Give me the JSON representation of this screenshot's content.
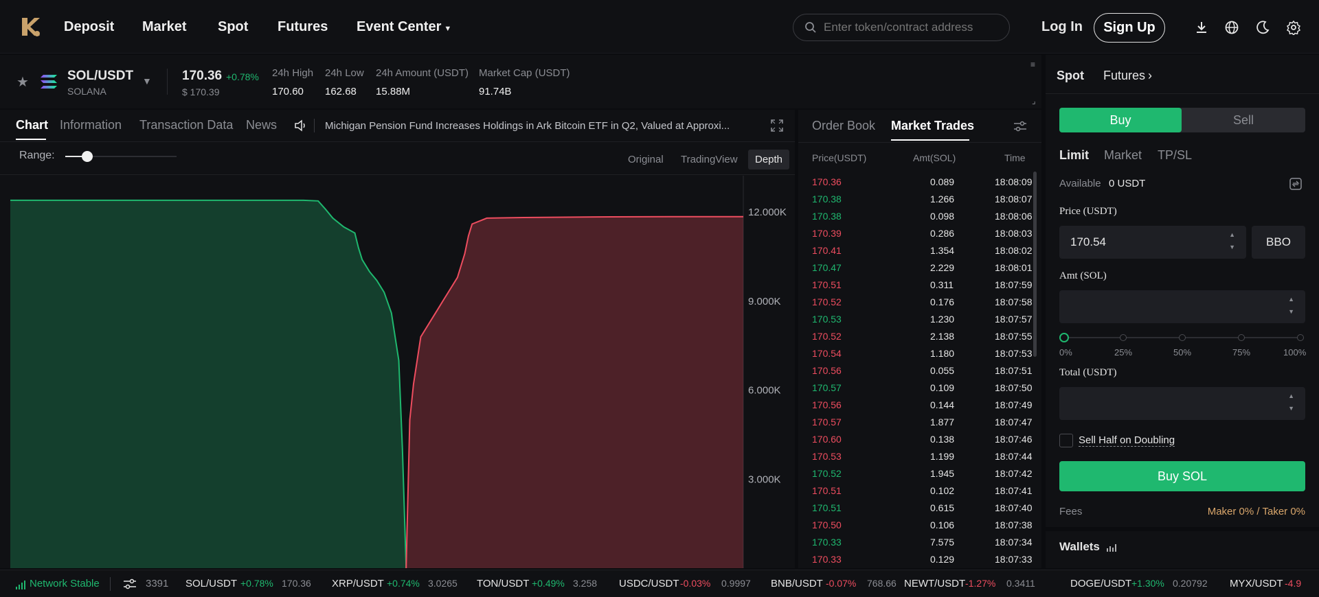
{
  "nav": {
    "links": [
      "Deposit",
      "Market",
      "Spot",
      "Futures",
      "Event Center"
    ],
    "search_placeholder": "Enter token/contract address",
    "login": "Log In",
    "signup": "Sign Up"
  },
  "pair": {
    "symbol": "SOL/USDT",
    "name": "SOLANA",
    "price": "170.36",
    "change": "+0.78%",
    "usd_price": "$ 170.39",
    "stats": [
      {
        "label": "24h High",
        "value": "170.60"
      },
      {
        "label": "24h Low",
        "value": "162.68"
      },
      {
        "label": "24h Amount (USDT)",
        "value": "15.88M"
      },
      {
        "label": "Market Cap (USDT)",
        "value": "91.74B"
      }
    ]
  },
  "chart_tabs": [
    "Chart",
    "Information",
    "Transaction Data",
    "News"
  ],
  "news_ticker": "Michigan Pension Fund Increases Holdings in Ark Bitcoin ETF in Q2, Valued at Approxi...",
  "range_label": "Range:",
  "range_level": 0.2,
  "view_modes": [
    "Original",
    "TradingView",
    "Depth"
  ],
  "chart_data": {
    "type": "area",
    "y_tick_labels": [
      "12.000K",
      "9.000K",
      "6.000K",
      "3.000K"
    ],
    "ylim": [
      0,
      13000
    ],
    "series": [
      {
        "color": "#1fb86f",
        "values": [
          [
            0,
            12400
          ],
          [
            0.02,
            12400
          ],
          [
            0.1,
            12400
          ],
          [
            0.2,
            12400
          ],
          [
            0.3,
            12400
          ],
          [
            0.4,
            12400
          ],
          [
            0.42,
            12380
          ],
          [
            0.43,
            12100
          ],
          [
            0.44,
            11800
          ],
          [
            0.455,
            11500
          ],
          [
            0.47,
            11300
          ],
          [
            0.475,
            10800
          ],
          [
            0.48,
            10400
          ],
          [
            0.49,
            10000
          ],
          [
            0.5,
            9700
          ],
          [
            0.51,
            9300
          ],
          [
            0.52,
            8600
          ],
          [
            0.53,
            7000
          ],
          [
            0.535,
            4000
          ],
          [
            0.54,
            0
          ]
        ]
      },
      {
        "color": "#ee4d5f",
        "values": [
          [
            0.54,
            0
          ],
          [
            0.545,
            5000
          ],
          [
            0.55,
            6200
          ],
          [
            0.56,
            7800
          ],
          [
            0.57,
            8200
          ],
          [
            0.58,
            8600
          ],
          [
            0.59,
            9000
          ],
          [
            0.6,
            9400
          ],
          [
            0.61,
            9800
          ],
          [
            0.62,
            10600
          ],
          [
            0.625,
            11200
          ],
          [
            0.63,
            11600
          ],
          [
            0.65,
            11800
          ],
          [
            0.7,
            11820
          ],
          [
            0.8,
            11840
          ],
          [
            0.9,
            11850
          ],
          [
            1.0,
            11850
          ]
        ]
      }
    ]
  },
  "trades_tabs": [
    "Order Book",
    "Market Trades"
  ],
  "trades_headers": [
    "Price(USDT)",
    "Amt(SOL)",
    "Time"
  ],
  "trades": [
    {
      "price": "170.36",
      "amt": "0.089",
      "time": "18:08:09",
      "side": "down"
    },
    {
      "price": "170.38",
      "amt": "1.266",
      "time": "18:08:07",
      "side": "up"
    },
    {
      "price": "170.38",
      "amt": "0.098",
      "time": "18:08:06",
      "side": "up"
    },
    {
      "price": "170.39",
      "amt": "0.286",
      "time": "18:08:03",
      "side": "down"
    },
    {
      "price": "170.41",
      "amt": "1.354",
      "time": "18:08:02",
      "side": "down"
    },
    {
      "price": "170.47",
      "amt": "2.229",
      "time": "18:08:01",
      "side": "up"
    },
    {
      "price": "170.51",
      "amt": "0.311",
      "time": "18:07:59",
      "side": "down"
    },
    {
      "price": "170.52",
      "amt": "0.176",
      "time": "18:07:58",
      "side": "down"
    },
    {
      "price": "170.53",
      "amt": "1.230",
      "time": "18:07:57",
      "side": "up"
    },
    {
      "price": "170.52",
      "amt": "2.138",
      "time": "18:07:55",
      "side": "down"
    },
    {
      "price": "170.54",
      "amt": "1.180",
      "time": "18:07:53",
      "side": "down"
    },
    {
      "price": "170.56",
      "amt": "0.055",
      "time": "18:07:51",
      "side": "down"
    },
    {
      "price": "170.57",
      "amt": "0.109",
      "time": "18:07:50",
      "side": "up"
    },
    {
      "price": "170.56",
      "amt": "0.144",
      "time": "18:07:49",
      "side": "down"
    },
    {
      "price": "170.57",
      "amt": "1.877",
      "time": "18:07:47",
      "side": "down"
    },
    {
      "price": "170.60",
      "amt": "0.138",
      "time": "18:07:46",
      "side": "down"
    },
    {
      "price": "170.53",
      "amt": "1.199",
      "time": "18:07:44",
      "side": "down"
    },
    {
      "price": "170.52",
      "amt": "1.945",
      "time": "18:07:42",
      "side": "up"
    },
    {
      "price": "170.51",
      "amt": "0.102",
      "time": "18:07:41",
      "side": "down"
    },
    {
      "price": "170.51",
      "amt": "0.615",
      "time": "18:07:40",
      "side": "up"
    },
    {
      "price": "170.50",
      "amt": "0.106",
      "time": "18:07:38",
      "side": "down"
    },
    {
      "price": "170.33",
      "amt": "7.575",
      "time": "18:07:34",
      "side": "up"
    },
    {
      "price": "170.33",
      "amt": "0.129",
      "time": "18:07:33",
      "side": "down"
    }
  ],
  "order": {
    "market_tabs": [
      "Spot",
      "Futures"
    ],
    "buy": "Buy",
    "sell": "Sell",
    "order_types": [
      "Limit",
      "Market",
      "TP/SL"
    ],
    "available_label": "Available",
    "available_value": "0 USDT",
    "price_label": "Price (USDT)",
    "price_value": "170.54",
    "bbo": "BBO",
    "amt_label": "Amt (SOL)",
    "slider_marks": [
      "0%",
      "25%",
      "50%",
      "75%",
      "100%"
    ],
    "total_label": "Total (USDT)",
    "sell_half": "Sell Half on Doubling",
    "submit": "Buy SOL",
    "fees_label": "Fees",
    "fees_value": "Maker 0% / Taker 0%",
    "wallets": "Wallets"
  },
  "ticker": {
    "status": "Network Stable",
    "partial": "3391",
    "items": [
      {
        "pair": "SOL/USDT",
        "change": "+0.78%",
        "price": "170.36",
        "side": "up"
      },
      {
        "pair": "XRP/USDT",
        "change": "+0.74%",
        "price": "3.0265",
        "side": "up"
      },
      {
        "pair": "TON/USDT",
        "change": "+0.49%",
        "price": "3.258",
        "side": "up"
      },
      {
        "pair": "USDC/USDT",
        "change": "-0.03%",
        "price": "0.9997",
        "side": "down"
      },
      {
        "pair": "BNB/USDT",
        "change": "-0.07%",
        "price": "768.66",
        "side": "down"
      },
      {
        "pair": "NEWT/USDT",
        "change": "-1.27%",
        "price": "0.3411",
        "side": "down"
      },
      {
        "pair": "DOGE/USDT",
        "change": "+1.30%",
        "price": "0.20792",
        "side": "up"
      },
      {
        "pair": "MYX/USDT",
        "change": "-4.9",
        "price": "",
        "side": "down"
      }
    ]
  },
  "colors": {
    "up": "#1fb86f",
    "down": "#ee4d5f",
    "accent": "#1fb86f"
  }
}
